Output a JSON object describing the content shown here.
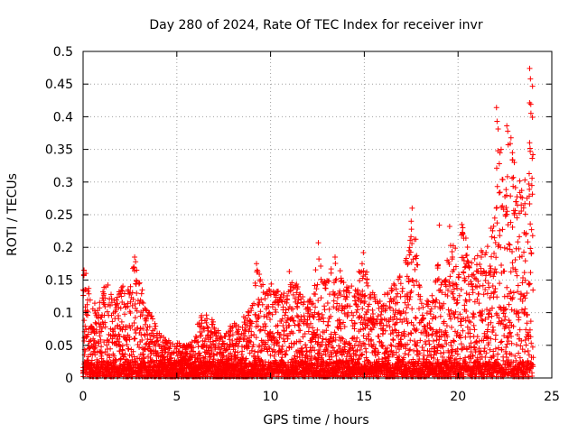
{
  "chart_data": {
    "type": "scatter",
    "title": "Day 280 of 2024, Rate Of TEC Index for receiver invr",
    "xlabel": "GPS time / hours",
    "ylabel": "ROTI / TECUs",
    "xlim": [
      0,
      25
    ],
    "ylim": [
      0,
      0.5
    ],
    "x_ticks": [
      0,
      5,
      10,
      15,
      20,
      25
    ],
    "y_ticks": [
      0,
      0.05,
      0.1,
      0.15,
      0.2,
      0.25,
      0.3,
      0.35,
      0.4,
      0.45,
      0.5
    ],
    "x_tick_labels": [
      "0",
      "5",
      "10",
      "15",
      "20",
      "25"
    ],
    "y_tick_labels": [
      "0",
      "0.05",
      "0.1",
      "0.15",
      "0.2",
      "0.25",
      "0.3",
      "0.35",
      "0.4",
      "0.45",
      "0.5"
    ],
    "grid": true,
    "marker": "+",
    "color": "#ff0000",
    "series": [
      {
        "name": "ROTI",
        "x_range": [
          0,
          24
        ],
        "sample_interval_hours": 0.02,
        "envelope": [
          [
            0.0,
            0.165
          ],
          [
            0.5,
            0.11
          ],
          [
            1.0,
            0.13
          ],
          [
            1.3,
            0.16
          ],
          [
            1.6,
            0.12
          ],
          [
            2.0,
            0.14
          ],
          [
            2.5,
            0.15
          ],
          [
            2.8,
            0.185
          ],
          [
            3.2,
            0.13
          ],
          [
            3.6,
            0.1
          ],
          [
            4.0,
            0.07
          ],
          [
            4.5,
            0.06
          ],
          [
            5.0,
            0.055
          ],
          [
            5.6,
            0.05
          ],
          [
            6.0,
            0.06
          ],
          [
            6.2,
            0.11
          ],
          [
            6.6,
            0.1
          ],
          [
            7.0,
            0.085
          ],
          [
            7.5,
            0.065
          ],
          [
            8.0,
            0.085
          ],
          [
            8.5,
            0.09
          ],
          [
            9.0,
            0.12
          ],
          [
            9.3,
            0.175
          ],
          [
            9.7,
            0.13
          ],
          [
            10.0,
            0.16
          ],
          [
            10.3,
            0.14
          ],
          [
            10.8,
            0.13
          ],
          [
            11.2,
            0.16
          ],
          [
            11.6,
            0.13
          ],
          [
            12.0,
            0.12
          ],
          [
            12.4,
            0.17
          ],
          [
            12.6,
            0.205
          ],
          [
            13.0,
            0.16
          ],
          [
            13.5,
            0.19
          ],
          [
            14.0,
            0.14
          ],
          [
            14.5,
            0.15
          ],
          [
            14.9,
            0.19
          ],
          [
            15.3,
            0.14
          ],
          [
            15.8,
            0.12
          ],
          [
            16.5,
            0.14
          ],
          [
            17.0,
            0.165
          ],
          [
            17.4,
            0.2
          ],
          [
            17.6,
            0.26
          ],
          [
            18.0,
            0.13
          ],
          [
            18.5,
            0.12
          ],
          [
            18.9,
            0.18
          ],
          [
            19.2,
            0.15
          ],
          [
            19.6,
            0.21
          ],
          [
            20.0,
            0.21
          ],
          [
            20.3,
            0.235
          ],
          [
            20.7,
            0.18
          ],
          [
            21.2,
            0.2
          ],
          [
            21.6,
            0.22
          ],
          [
            22.0,
            0.25
          ],
          [
            22.1,
            0.41
          ],
          [
            22.4,
            0.3
          ],
          [
            22.7,
            0.385
          ],
          [
            23.1,
            0.34
          ],
          [
            23.5,
            0.29
          ],
          [
            23.9,
            0.474
          ]
        ],
        "outliers": [
          [
            22.05,
            0.414
          ],
          [
            22.08,
            0.393
          ],
          [
            22.6,
            0.386
          ],
          [
            22.65,
            0.378
          ],
          [
            23.82,
            0.474
          ],
          [
            23.86,
            0.458
          ],
          [
            23.88,
            0.419
          ],
          [
            23.85,
            0.347
          ],
          [
            23.78,
            0.297
          ],
          [
            22.2,
            0.328
          ],
          [
            17.55,
            0.26
          ],
          [
            17.5,
            0.24
          ],
          [
            20.2,
            0.235
          ],
          [
            20.25,
            0.23
          ],
          [
            19.55,
            0.232
          ],
          [
            19.0,
            0.234
          ],
          [
            22.3,
            0.35
          ],
          [
            22.9,
            0.345
          ],
          [
            23.0,
            0.33
          ],
          [
            2.75,
            0.185
          ],
          [
            2.8,
            0.178
          ],
          [
            0.05,
            0.165
          ],
          [
            0.15,
            0.16
          ],
          [
            12.55,
            0.207
          ],
          [
            11.0,
            0.163
          ],
          [
            14.95,
            0.192
          ],
          [
            9.25,
            0.175
          ],
          [
            0.3,
            0.137
          ],
          [
            23.1,
            0.27
          ],
          [
            22.55,
            0.25
          ]
        ]
      }
    ]
  }
}
